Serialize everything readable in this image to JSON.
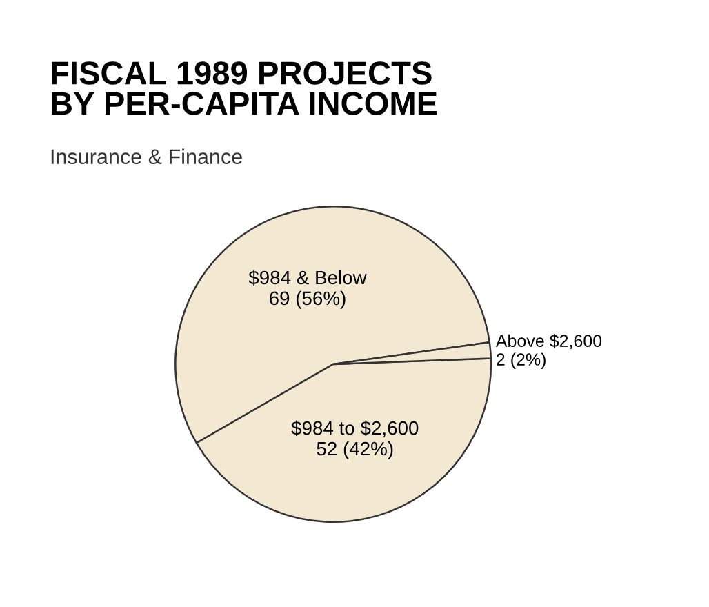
{
  "chart_data": {
    "type": "pie",
    "title": "FISCAL 1989 PROJECTS\nBY PER-CAPITA INCOME",
    "subtitle": "Insurance & Finance",
    "categories": [
      "$984 & Below",
      "$984 to $2,600",
      "Above $2,600"
    ],
    "values": [
      69,
      52,
      2
    ],
    "value_labels": [
      "69 (56%)",
      "52 (42%)",
      "2 (2%)"
    ],
    "colors": [
      "#f3e9d2",
      "#f3e9d2",
      "#f3e9d2"
    ]
  }
}
